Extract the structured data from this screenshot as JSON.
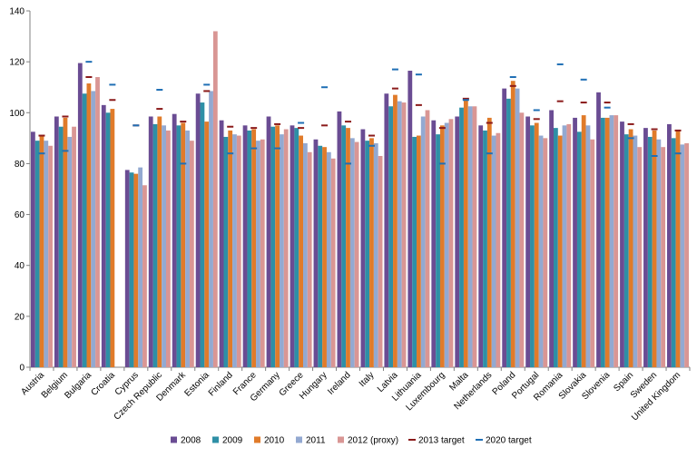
{
  "chart_data": {
    "type": "bar",
    "title": "",
    "xlabel": "",
    "ylabel": "",
    "ylim": [
      0,
      140
    ],
    "yticks": [
      0,
      20,
      40,
      60,
      80,
      100,
      120,
      140
    ],
    "grid": false,
    "legend_position": "bottom",
    "categories": [
      "Austria",
      "Belgium",
      "Bulgaria",
      "Croatia",
      "Cyprus",
      "Czech Republic",
      "Denmark",
      "Estonia",
      "Finland",
      "France",
      "Germany",
      "Greece",
      "Hungary",
      "Ireland",
      "Italy",
      "Latvia",
      "Lithuania",
      "Luxembourg",
      "Malta",
      "Netherlands",
      "Poland",
      "Portugal",
      "Romania",
      "Slovakia",
      "Slovenia",
      "Spain",
      "Sweden",
      "United Kingdom"
    ],
    "series": [
      {
        "name": "2008",
        "color": "#6a4c93",
        "values": [
          92.5,
          98.5,
          119.5,
          103,
          77.5,
          98.5,
          99.5,
          107.5,
          97,
          95,
          98.5,
          95,
          89.5,
          100.5,
          93.5,
          107.5,
          116.5,
          97,
          98.5,
          95,
          109.5,
          98.5,
          101,
          98,
          108,
          96.5,
          94,
          95.5
        ]
      },
      {
        "name": "2009",
        "color": "#2e8fa6",
        "values": [
          89,
          94.5,
          107.5,
          100,
          76.5,
          95.5,
          95,
          104,
          90.5,
          93,
          94.5,
          94,
          87,
          95,
          89,
          102.5,
          90.5,
          91.5,
          102,
          93,
          105.5,
          95,
          94,
          92.5,
          98,
          91.5,
          90.5,
          90
        ]
      },
      {
        "name": "2010",
        "color": "#e07b2a",
        "values": [
          91,
          98,
          111.5,
          101.5,
          76,
          98.5,
          96,
          96.5,
          93,
          93.5,
          95,
          91,
          86.5,
          94,
          90,
          107,
          91,
          95,
          105.5,
          98,
          112.5,
          96,
          91,
          99,
          98,
          93.5,
          93,
          93
        ]
      },
      {
        "name": "2011",
        "color": "#93a9d1",
        "values": [
          89,
          90.5,
          108.5,
          null,
          78.5,
          95,
          93,
          108.5,
          91.5,
          89,
          91.5,
          88,
          84.5,
          90,
          88,
          104.5,
          98.5,
          96,
          102.5,
          91,
          109.5,
          91,
          95,
          95,
          99,
          91,
          89.5,
          87.5
        ]
      },
      {
        "name": "2012 (proxy)",
        "color": "#d99694",
        "values": [
          87,
          94.5,
          114,
          null,
          71.5,
          93,
          89,
          132,
          91,
          89.5,
          93.5,
          84.5,
          82,
          88.5,
          83,
          104,
          101,
          97.5,
          102.5,
          92,
          100,
          90,
          95.5,
          89.5,
          99,
          86.5,
          86.5,
          88
        ]
      }
    ],
    "targets": [
      {
        "name": "2013 target",
        "color": "#8b1a1a",
        "values": [
          91,
          98.5,
          114,
          105,
          95,
          101.5,
          96.5,
          108.5,
          94.5,
          94,
          95.5,
          94,
          95,
          96.5,
          91,
          109.5,
          103,
          94,
          105.5,
          96,
          110.5,
          97.5,
          104.5,
          104,
          104,
          95.5,
          93.5,
          93
        ]
      },
      {
        "name": "2020 target",
        "color": "#1f6fb5",
        "values": [
          84,
          85,
          120,
          111,
          95,
          109,
          80,
          111,
          84,
          86,
          86,
          96,
          110,
          80,
          87,
          117,
          115,
          80,
          105,
          84,
          114,
          101,
          119,
          113,
          102,
          90,
          83,
          84
        ]
      }
    ]
  }
}
